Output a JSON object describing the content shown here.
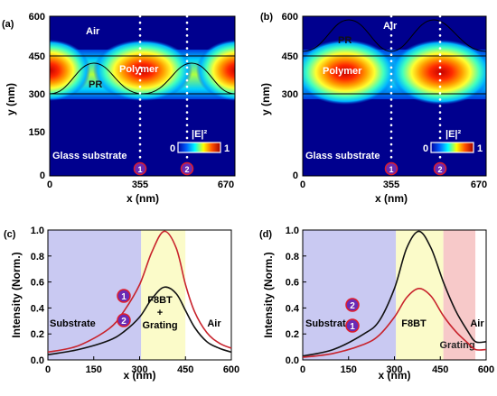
{
  "colors": {
    "substrate_region": "#c9c9f2",
    "active_region": "#fbfbc9",
    "grating_region": "#f7c9c9",
    "curve_red": "#c8232c",
    "curve_black": "#111111",
    "marker_fill": "#6a2bb5",
    "marker_ring": "#e01d2a"
  },
  "panels": {
    "a": {
      "letter": "(a)",
      "xlabel": "x (nm)",
      "ylabel": "y (nm)",
      "xticks": [
        "0",
        "355",
        "670"
      ],
      "yticks": [
        "0",
        "150",
        "300",
        "450",
        "600"
      ],
      "labels": {
        "air": "Air",
        "polymer": "Polymer",
        "pr": "PR",
        "glass": "Glass substrate"
      },
      "colorbar": {
        "title": "|E|²",
        "min": "0",
        "max": "1"
      },
      "markers": [
        "1",
        "2"
      ]
    },
    "b": {
      "letter": "(b)",
      "xlabel": "x (nm)",
      "ylabel": "y (nm)",
      "xticks": [
        "0",
        "355",
        "670"
      ],
      "yticks": [
        "0",
        "300",
        "450",
        "600"
      ],
      "labels": {
        "air": "Air",
        "polymer": "Polymer",
        "pr": "PR",
        "glass": "Glass substrate"
      },
      "colorbar": {
        "title": "|E|²",
        "min": "0",
        "max": "1"
      },
      "markers": [
        "1",
        "2"
      ]
    }
  },
  "chart_data": [
    {
      "panel": "c",
      "letter": "(c)",
      "type": "line",
      "xlabel": "x (nm)",
      "ylabel": "Intensity (Norm.)",
      "xlim": [
        0,
        600
      ],
      "ylim": [
        0,
        1.0
      ],
      "xticks": [
        0,
        150,
        300,
        450,
        600
      ],
      "yticks": [
        0.0,
        0.2,
        0.4,
        0.6,
        0.8,
        1.0
      ],
      "regions": [
        {
          "label": "Substrate",
          "from": 0,
          "to": 305,
          "color": "#c9c9f2"
        },
        {
          "label": "F8BT\n+\nGrating",
          "from": 305,
          "to": 450,
          "color": "#fbfbc9"
        },
        {
          "label": "Air",
          "from": 450,
          "to": 600,
          "color": "#ffffff"
        }
      ],
      "series": [
        {
          "marker": "1",
          "color": "#c8232c",
          "x": [
            0,
            100,
            200,
            250,
            300,
            340,
            380,
            420,
            450,
            480,
            520,
            560,
            600
          ],
          "y": [
            0.06,
            0.11,
            0.24,
            0.38,
            0.58,
            0.83,
            0.99,
            0.86,
            0.58,
            0.37,
            0.21,
            0.13,
            0.09
          ]
        },
        {
          "marker": "2",
          "color": "#111111",
          "x": [
            0,
            100,
            200,
            250,
            300,
            340,
            380,
            420,
            450,
            480,
            520,
            560,
            600
          ],
          "y": [
            0.04,
            0.08,
            0.15,
            0.22,
            0.33,
            0.47,
            0.56,
            0.51,
            0.38,
            0.25,
            0.14,
            0.09,
            0.06
          ]
        }
      ]
    },
    {
      "panel": "d",
      "letter": "(d)",
      "type": "line",
      "xlabel": "x (nm)",
      "ylabel": "Intensity (Norm.)",
      "xlim": [
        0,
        600
      ],
      "ylim": [
        0,
        1.0
      ],
      "xticks": [
        0,
        150,
        300,
        450,
        600
      ],
      "yticks": [
        0.0,
        0.2,
        0.4,
        0.6,
        0.8,
        1.0
      ],
      "regions": [
        {
          "label": "Substrate",
          "from": 0,
          "to": 305,
          "color": "#c9c9f2"
        },
        {
          "label": "F8BT",
          "from": 305,
          "to": 460,
          "color": "#fbfbc9"
        },
        {
          "label": "Grating",
          "from": 460,
          "to": 565,
          "color": "#f7c9c9"
        },
        {
          "label": "Air",
          "from": 565,
          "to": 600,
          "color": "#ffffff"
        }
      ],
      "series": [
        {
          "marker": "2",
          "color": "#111111",
          "x": [
            0,
            100,
            200,
            250,
            300,
            340,
            380,
            420,
            460,
            500,
            540,
            565,
            600
          ],
          "y": [
            0.03,
            0.08,
            0.2,
            0.3,
            0.55,
            0.86,
            0.99,
            0.86,
            0.6,
            0.38,
            0.22,
            0.14,
            0.14
          ]
        },
        {
          "marker": "1",
          "color": "#c8232c",
          "x": [
            0,
            100,
            200,
            250,
            300,
            340,
            380,
            420,
            460,
            500,
            540,
            565,
            600
          ],
          "y": [
            0.02,
            0.05,
            0.12,
            0.19,
            0.33,
            0.48,
            0.55,
            0.49,
            0.34,
            0.22,
            0.13,
            0.08,
            0.08
          ]
        }
      ]
    }
  ]
}
